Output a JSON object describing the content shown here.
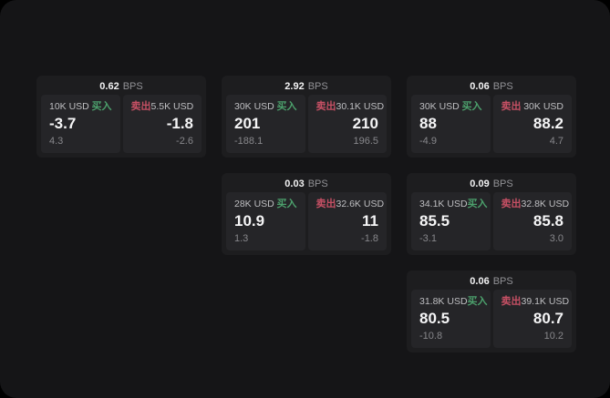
{
  "labels": {
    "bps_unit": "BPS",
    "buy": "买入",
    "sell": "卖出"
  },
  "colors": {
    "page_bg": "#151517",
    "card_bg": "#1d1d1f",
    "tile_bg": "#252528",
    "buy_green": "#4ca06c",
    "sell_red": "#c65064",
    "text_primary": "#f5f5f6",
    "text_secondary": "#87878b"
  },
  "cards": [
    {
      "bps": "0.62",
      "buy": {
        "amount": "10K USD",
        "price": "-3.7",
        "sub": "4.3"
      },
      "sell": {
        "amount": "5.5K USD",
        "price": "-1.8",
        "sub": "-2.6"
      }
    },
    {
      "bps": "2.92",
      "buy": {
        "amount": "30K USD",
        "price": "201",
        "sub": "-188.1"
      },
      "sell": {
        "amount": "30.1K USD",
        "price": "210",
        "sub": "196.5"
      }
    },
    {
      "bps": "0.06",
      "buy": {
        "amount": "30K USD",
        "price": "88",
        "sub": "-4.9"
      },
      "sell": {
        "amount": "30K USD",
        "price": "88.2",
        "sub": "4.7"
      }
    },
    {
      "bps": "0.03",
      "buy": {
        "amount": "28K USD",
        "price": "10.9",
        "sub": "1.3"
      },
      "sell": {
        "amount": "32.6K USD",
        "price": "11",
        "sub": "-1.8"
      }
    },
    {
      "bps": "0.09",
      "buy": {
        "amount": "34.1K USD",
        "price": "85.5",
        "sub": "-3.1"
      },
      "sell": {
        "amount": "32.8K USD",
        "price": "85.8",
        "sub": "3.0"
      }
    },
    {
      "bps": "0.06",
      "buy": {
        "amount": "31.8K USD",
        "price": "80.5",
        "sub": "-10.8"
      },
      "sell": {
        "amount": "39.1K USD",
        "price": "80.7",
        "sub": "10.2"
      }
    }
  ]
}
